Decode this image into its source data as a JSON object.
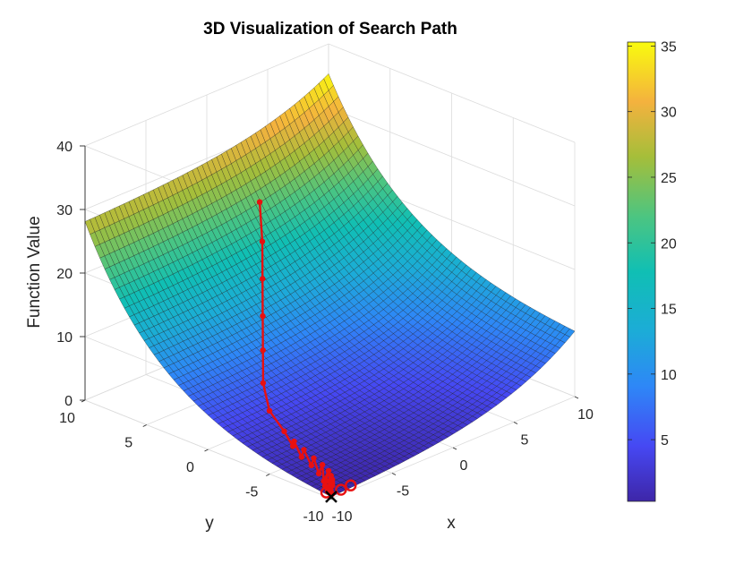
{
  "chart_data": {
    "type": "surface3d",
    "title": "3D Visualization of Search Path",
    "xlabel": "x",
    "ylabel": "y",
    "zlabel": "Function Value",
    "xlim": [
      -10,
      10
    ],
    "ylim": [
      -10,
      10
    ],
    "zlim": [
      0,
      40
    ],
    "x_ticks": [
      -10,
      -5,
      0,
      5,
      10
    ],
    "y_ticks": [
      -10,
      -5,
      0,
      5,
      10
    ],
    "z_ticks": [
      0,
      10,
      20,
      30,
      40
    ],
    "x_tick_labels": [
      "-10",
      "-5",
      "0",
      "5",
      "10"
    ],
    "y_tick_labels": [
      "-10",
      "-5",
      "0",
      "5",
      "10"
    ],
    "z_tick_labels": [
      "0",
      "10",
      "20",
      "30",
      "40"
    ],
    "colormap": "parula",
    "colorbar": {
      "range": [
        0.3,
        35.3
      ],
      "ticks": [
        5,
        10,
        15,
        20,
        25,
        30,
        35
      ],
      "tick_labels": [
        "5",
        "10",
        "15",
        "20",
        "25",
        "30",
        "35"
      ],
      "placement": "right"
    },
    "surface_corner_values": {
      "x-10_y-10": 0.3,
      "x10_y-10": 10.3,
      "x-10_y10": 28.1,
      "x10_y10": 35.3
    },
    "grid": true,
    "search_path": {
      "color": "#e81010",
      "x": [
        -9.8,
        -9.2,
        -9.8,
        -9.0,
        -9.9,
        -8.8,
        -9.7,
        -8.6,
        -9.6,
        -8.4,
        -9.3,
        -8.3,
        -9.0,
        -8.3,
        -8.8,
        -8.3,
        -8.8,
        -8.3,
        -8.5,
        -8.2,
        -8.0,
        -7.0,
        -5.5,
        -4.0,
        -2.5,
        -1.0,
        0.3
      ],
      "y": [
        -9.9,
        -9.3,
        -9.8,
        -9.1,
        -9.6,
        -8.9,
        -9.4,
        -8.6,
        -9.1,
        -8.2,
        -8.7,
        -7.6,
        -8.0,
        -6.9,
        -7.2,
        -6.1,
        -6.4,
        -5.3,
        -5.4,
        -4.4,
        -3.0,
        -1.5,
        0.0,
        1.5,
        3.0,
        4.5,
        6.0
      ],
      "z": [
        0.5,
        0.9,
        0.6,
        1.0,
        0.7,
        1.2,
        0.8,
        1.4,
        1.0,
        1.7,
        1.2,
        2.1,
        1.6,
        2.6,
        2.1,
        3.3,
        2.8,
        4.0,
        3.5,
        4.8,
        6.8,
        9.2,
        12.0,
        15.0,
        18.5,
        22.0,
        26.0
      ],
      "start_marker_points": [
        [
          -8.4,
          -10,
          0.8
        ],
        [
          -9.1,
          -9.9,
          0.6
        ],
        [
          -9.9,
          -9.5,
          0.5
        ]
      ],
      "end_marker": {
        "x": -10,
        "y": -10,
        "z": 0.3,
        "symbol": "x",
        "color": "#000000"
      }
    }
  }
}
